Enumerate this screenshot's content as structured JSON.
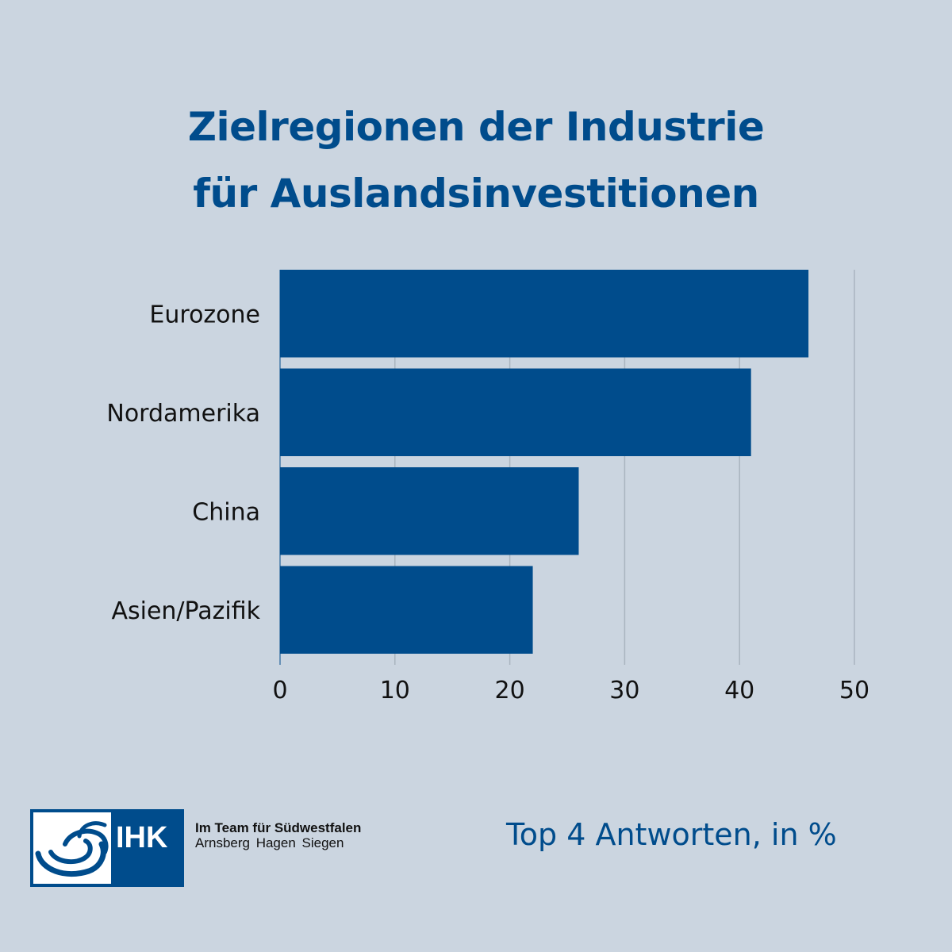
{
  "colors": {
    "background": "#cbd5e0",
    "bar": "#004c8c",
    "title": "#004c8c",
    "grid": "#a9b4bf"
  },
  "chart_data": {
    "type": "bar",
    "orientation": "horizontal",
    "title_lines": [
      "Zielregionen der Industrie",
      "für Auslandsinvestitionen"
    ],
    "categories": [
      "Eurozone",
      "Nordamerika",
      "China",
      "Asien/Pazifik"
    ],
    "values": [
      46,
      41,
      26,
      22
    ],
    "xlim": [
      0,
      50
    ],
    "xticks": [
      0,
      10,
      20,
      30,
      40,
      50
    ],
    "xlabel": "",
    "ylabel": "",
    "grid": "vertical",
    "legend": "none"
  },
  "footnote": "Top 4 Antworten, in %",
  "logo": {
    "icon": "ihk-swirl-logo-icon",
    "text": "IHK",
    "tagline_1": "Im Team für Südwestfalen",
    "tagline_2": "Arnsberg  Hagen  Siegen"
  }
}
